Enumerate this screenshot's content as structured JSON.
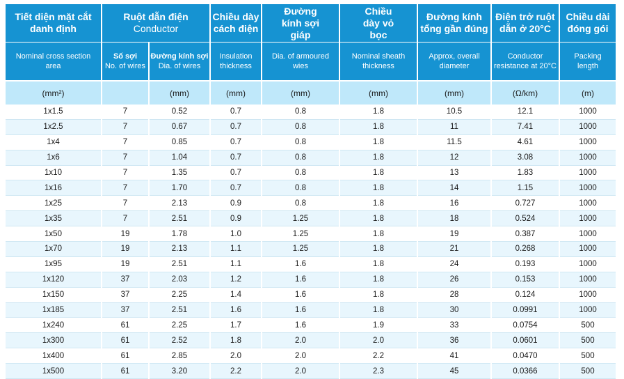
{
  "headers": {
    "cross_section_vi": "Tiết diện mặt cắt danh định",
    "cross_section_en": "Nominal cross section area",
    "conductor_vi": "Ruột dẫn điện",
    "conductor_en": "Conductor",
    "wires_vi": "Số sợi",
    "wires_en": "No. of wires",
    "dia_wire_vi": "Đường kính sợi",
    "dia_wire_en": "Dia. of wires",
    "insulation_vi": "Chiều dày cách điện",
    "insulation_en": "Insulation thickness",
    "armour_vi": "Đường kính sợi giáp",
    "armour_en": "Dia. of armoured wies",
    "sheath_vi": "Chiều dày vỏ bọc",
    "sheath_en": "Nominal sheath thickness",
    "overall_vi": "Đường kính tổng gần đúng",
    "overall_en": "Approx, overall diameter",
    "resistance_vi": "Điện trở ruột dẫn ở 20°C",
    "resistance_en": "Conductor resistance at 20°C",
    "packing_vi": "Chiều dài đóng gói",
    "packing_en": "Packing length"
  },
  "units": [
    "(mm²)",
    "",
    "(mm)",
    "(mm)",
    "(mm)",
    "(mm)",
    "(mm)",
    "(Ω/km)",
    "(m)"
  ],
  "rows": [
    [
      "1x1.5",
      "7",
      "0.52",
      "0.7",
      "0.8",
      "1.8",
      "10.5",
      "12.1",
      "1000"
    ],
    [
      "1x2.5",
      "7",
      "0.67",
      "0.7",
      "0.8",
      "1.8",
      "11",
      "7.41",
      "1000"
    ],
    [
      "1x4",
      "7",
      "0.85",
      "0.7",
      "0.8",
      "1.8",
      "11.5",
      "4.61",
      "1000"
    ],
    [
      "1x6",
      "7",
      "1.04",
      "0.7",
      "0.8",
      "1.8",
      "12",
      "3.08",
      "1000"
    ],
    [
      "1x10",
      "7",
      "1.35",
      "0.7",
      "0.8",
      "1.8",
      "13",
      "1.83",
      "1000"
    ],
    [
      "1x16",
      "7",
      "1.70",
      "0.7",
      "0.8",
      "1.8",
      "14",
      "1.15",
      "1000"
    ],
    [
      "1x25",
      "7",
      "2.13",
      "0.9",
      "0.8",
      "1.8",
      "16",
      "0.727",
      "1000"
    ],
    [
      "1x35",
      "7",
      "2.51",
      "0.9",
      "1.25",
      "1.8",
      "18",
      "0.524",
      "1000"
    ],
    [
      "1x50",
      "19",
      "1.78",
      "1.0",
      "1.25",
      "1.8",
      "19",
      "0.387",
      "1000"
    ],
    [
      "1x70",
      "19",
      "2.13",
      "1.1",
      "1.25",
      "1.8",
      "21",
      "0.268",
      "1000"
    ],
    [
      "1x95",
      "19",
      "2.51",
      "1.1",
      "1.6",
      "1.8",
      "24",
      "0.193",
      "1000"
    ],
    [
      "1x120",
      "37",
      "2.03",
      "1.2",
      "1.6",
      "1.8",
      "26",
      "0.153",
      "1000"
    ],
    [
      "1x150",
      "37",
      "2.25",
      "1.4",
      "1.6",
      "1.8",
      "28",
      "0.124",
      "1000"
    ],
    [
      "1x185",
      "37",
      "2.51",
      "1.6",
      "1.6",
      "1.8",
      "30",
      "0.0991",
      "1000"
    ],
    [
      "1x240",
      "61",
      "2.25",
      "1.7",
      "1.6",
      "1.9",
      "33",
      "0.0754",
      "500"
    ],
    [
      "1x300",
      "61",
      "2.52",
      "1.8",
      "2.0",
      "2.0",
      "36",
      "0.0601",
      "500"
    ],
    [
      "1x400",
      "61",
      "2.85",
      "2.0",
      "2.0",
      "2.2",
      "41",
      "0.0470",
      "500"
    ],
    [
      "1x500",
      "61",
      "3.20",
      "2.2",
      "2.0",
      "2.3",
      "45",
      "0.0366",
      "500"
    ]
  ]
}
